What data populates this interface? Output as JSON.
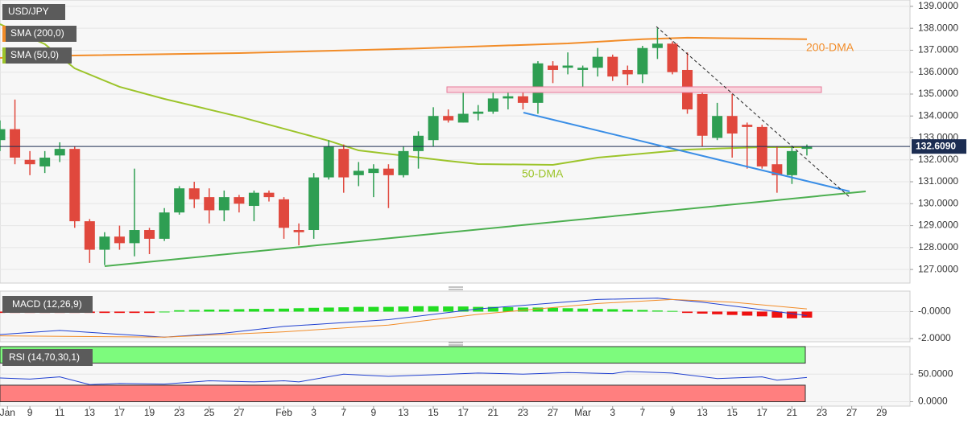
{
  "chart_data": [
    {
      "type": "candlestick",
      "title": "USD/JPY",
      "xlim": [
        -2,
        58.9
      ],
      "ylim": [
        126.38,
        139.29
      ],
      "yticks": [
        {
          "value": 127,
          "label": "127.0000"
        },
        {
          "value": 128,
          "label": "128.0000"
        },
        {
          "value": 129,
          "label": "129.0000"
        },
        {
          "value": 130,
          "label": "130.0000"
        },
        {
          "value": 131,
          "label": "131.0000"
        },
        {
          "value": 132,
          "label": "132.0000"
        },
        {
          "value": 133,
          "label": "133.0000"
        },
        {
          "value": 134,
          "label": "134.0000"
        },
        {
          "value": 135,
          "label": "135.0000"
        },
        {
          "value": 136,
          "label": "136.0000"
        },
        {
          "value": 137,
          "label": "137.0000"
        },
        {
          "value": 138,
          "label": "138.0000"
        },
        {
          "value": 139,
          "label": "139.0000"
        }
      ],
      "xticks": [
        {
          "value": -1.5,
          "label": "Jan"
        },
        {
          "value": 0,
          "label": "9"
        },
        {
          "value": 2,
          "label": "11"
        },
        {
          "value": 4,
          "label": "13"
        },
        {
          "value": 6,
          "label": "17"
        },
        {
          "value": 8,
          "label": "19"
        },
        {
          "value": 10,
          "label": "23"
        },
        {
          "value": 12,
          "label": "25"
        },
        {
          "value": 14,
          "label": "27"
        },
        {
          "value": 17,
          "label": "Feb"
        },
        {
          "value": 19,
          "label": "3"
        },
        {
          "value": 21,
          "label": "7"
        },
        {
          "value": 23,
          "label": "9"
        },
        {
          "value": 25,
          "label": "13"
        },
        {
          "value": 27,
          "label": "15"
        },
        {
          "value": 29,
          "label": "17"
        },
        {
          "value": 31,
          "label": "21"
        },
        {
          "value": 33,
          "label": "23"
        },
        {
          "value": 35,
          "label": "27"
        },
        {
          "value": 37,
          "label": "Mar"
        },
        {
          "value": 39,
          "label": "3"
        },
        {
          "value": 41,
          "label": "7"
        },
        {
          "value": 43,
          "label": "9"
        },
        {
          "value": 45,
          "label": "13"
        },
        {
          "value": 47,
          "label": "15"
        },
        {
          "value": 49,
          "label": "17"
        },
        {
          "value": 51,
          "label": "21"
        },
        {
          "value": 53,
          "label": "23"
        },
        {
          "value": 55,
          "label": "27"
        },
        {
          "value": 57,
          "label": "29"
        }
      ],
      "up_color": "#2e9e52",
      "down_color": "#e0483d",
      "x": [
        -2,
        -1,
        0,
        1,
        2,
        3,
        4,
        5,
        6,
        7,
        8,
        9,
        10,
        11,
        12,
        13,
        14,
        15,
        16,
        17,
        18,
        19,
        20,
        21,
        22,
        23,
        24,
        25,
        26,
        27,
        28,
        29,
        30,
        31,
        32,
        33,
        34,
        35,
        36,
        37,
        38,
        39,
        40,
        41,
        42,
        43,
        44,
        45,
        46,
        47,
        48,
        49,
        50,
        51,
        52
      ],
      "open": [
        132.9,
        133.4,
        132.0,
        131.7,
        132.2,
        132.5,
        129.2,
        127.9,
        128.5,
        128.2,
        128.8,
        128.4,
        129.6,
        130.7,
        130.3,
        129.7,
        130.3,
        129.9,
        130.5,
        130.2,
        128.8,
        128.8,
        131.2,
        132.5,
        131.3,
        131.4,
        131.6,
        131.3,
        132.4,
        132.9,
        134.0,
        133.7,
        134.1,
        134.2,
        134.8,
        134.9,
        134.6,
        136.3,
        136.2,
        136.1,
        136.2,
        136.7,
        136.1,
        135.9,
        137.1,
        137.3,
        136.1,
        135.0,
        133.0,
        134.0,
        133.6,
        133.5,
        131.8,
        131.3,
        132.5
      ],
      "high": [
        133.8,
        134.75,
        132.4,
        132.4,
        132.8,
        132.6,
        129.3,
        128.7,
        129.0,
        131.6,
        128.9,
        129.8,
        130.8,
        131.0,
        130.7,
        130.6,
        130.4,
        130.6,
        130.6,
        130.3,
        129.1,
        131.4,
        132.9,
        132.7,
        131.9,
        131.8,
        131.8,
        132.6,
        133.3,
        134.4,
        134.3,
        135.1,
        134.5,
        135.2,
        135.1,
        135.1,
        136.5,
        136.5,
        136.9,
        136.3,
        137.1,
        136.8,
        136.3,
        137.2,
        138.0,
        137.4,
        136.9,
        135.1,
        134.6,
        135.0,
        133.7,
        133.6,
        132.6,
        132.6,
        132.7
      ],
      "low": [
        132.4,
        131.8,
        131.3,
        131.4,
        131.9,
        128.9,
        127.3,
        127.2,
        127.9,
        127.6,
        127.7,
        128.3,
        129.5,
        129.8,
        129.1,
        129.2,
        129.6,
        129.2,
        130.1,
        128.4,
        128.1,
        128.4,
        131.1,
        130.5,
        130.8,
        130.3,
        129.8,
        131.2,
        131.6,
        132.6,
        133.7,
        133.7,
        133.8,
        134.1,
        134.3,
        134.3,
        134.1,
        135.5,
        135.9,
        135.3,
        135.8,
        135.6,
        135.4,
        135.5,
        136.6,
        135.9,
        134.1,
        132.6,
        132.9,
        132.1,
        131.6,
        131.6,
        130.5,
        130.9,
        132.2
      ],
      "close": [
        133.4,
        132.1,
        131.8,
        132.1,
        132.5,
        129.2,
        127.9,
        128.5,
        128.2,
        128.8,
        128.4,
        129.6,
        130.7,
        130.2,
        129.7,
        130.3,
        130.0,
        130.5,
        130.3,
        128.9,
        128.7,
        131.2,
        132.6,
        131.2,
        131.5,
        131.6,
        131.3,
        132.4,
        133.1,
        134.0,
        133.8,
        134.1,
        134.2,
        134.8,
        134.9,
        134.6,
        136.4,
        136.1,
        136.3,
        136.2,
        136.7,
        135.8,
        135.9,
        137.1,
        137.3,
        136.0,
        134.3,
        133.1,
        134.0,
        133.2,
        133.5,
        131.7,
        131.3,
        132.4,
        132.6
      ],
      "series": [
        {
          "name": "SMA (200,0)",
          "color": "#f28c28",
          "x": [
            -2,
            3,
            14,
            25,
            36,
            41,
            44,
            49,
            52
          ],
          "values": [
            136.65,
            136.76,
            136.87,
            137.06,
            137.31,
            137.5,
            137.57,
            137.53,
            137.5
          ]
        },
        {
          "name": "SMA (50,0)",
          "color": "#9cc42a",
          "x": [
            -2,
            1,
            3,
            6,
            9,
            14,
            20,
            22,
            28,
            30,
            35,
            38,
            44,
            49,
            52
          ],
          "values": [
            138.19,
            137.28,
            136.17,
            135.33,
            134.78,
            133.97,
            132.87,
            132.43,
            131.95,
            131.81,
            131.77,
            132.1,
            132.47,
            132.58,
            132.58
          ]
        }
      ],
      "last_price": {
        "value": 132.609,
        "label": "132.6090"
      },
      "annotations": [
        "200-DMA",
        "50-DMA"
      ]
    },
    {
      "type": "bar",
      "title": "MACD (12,26,9)",
      "xlim": [
        -2,
        58.9
      ],
      "ylim": [
        -2.24,
        1.52
      ],
      "yticks": [
        {
          "value": 0,
          "label": "-0.0000"
        },
        {
          "value": -2,
          "label": "-2.0000"
        }
      ],
      "up_color": "#22dd22",
      "down_color": "#ee1111",
      "x": [
        -2,
        -1,
        0,
        1,
        2,
        3,
        4,
        5,
        6,
        7,
        8,
        9,
        10,
        11,
        12,
        13,
        14,
        15,
        16,
        17,
        18,
        19,
        20,
        21,
        22,
        23,
        24,
        25,
        26,
        27,
        28,
        29,
        30,
        31,
        32,
        33,
        34,
        35,
        36,
        37,
        38,
        39,
        40,
        41,
        42,
        43,
        44,
        45,
        46,
        47,
        48,
        49,
        50,
        51,
        52
      ],
      "values": [
        -0.1,
        -0.1,
        -0.1,
        -0.1,
        -0.1,
        -0.1,
        -0.1,
        -0.1,
        -0.1,
        -0.1,
        -0.1,
        0,
        0.1,
        0.12,
        0.15,
        0.15,
        0.18,
        0.2,
        0.2,
        0.22,
        0.25,
        0.28,
        0.3,
        0.32,
        0.35,
        0.35,
        0.35,
        0.38,
        0.4,
        0.4,
        0.38,
        0.38,
        0.35,
        0.35,
        0.33,
        0.3,
        0.3,
        0.28,
        0.25,
        0.22,
        0.2,
        0.18,
        0.15,
        0.12,
        0.08,
        0.05,
        -0.1,
        -0.15,
        -0.2,
        -0.25,
        -0.3,
        -0.35,
        -0.45,
        -0.5,
        -0.45
      ],
      "series": [
        {
          "color": "#2040d0",
          "x": [
            -2,
            2,
            9,
            13,
            17,
            24,
            30,
            38,
            42,
            45,
            50,
            52
          ],
          "values": [
            -1.7,
            -1.4,
            -1.9,
            -1.6,
            -1.1,
            -0.6,
            0.2,
            0.9,
            1.0,
            0.7,
            0,
            -0.3
          ]
        },
        {
          "color": "#f28c28",
          "x": [
            -2,
            9,
            17,
            24,
            30,
            38,
            43,
            47,
            52
          ],
          "values": [
            -1.8,
            -1.9,
            -1.5,
            -1.0,
            -0.2,
            0.6,
            0.9,
            0.7,
            0.2
          ]
        }
      ]
    },
    {
      "type": "line",
      "title": "RSI (14,70,30,1)",
      "xlim": [
        -2,
        58.9
      ],
      "ylim": [
        -8,
        100
      ],
      "yticks": [
        {
          "value": 50,
          "label": "50.0000"
        },
        {
          "value": 0,
          "label": "0.0000"
        }
      ],
      "bands": [
        {
          "range": [
            70,
            100
          ],
          "color": "#7dfb7d"
        },
        {
          "range": [
            0,
            30
          ],
          "color": "#ff7f7f"
        }
      ],
      "series": [
        {
          "color": "#2040d0",
          "x": [
            -2,
            0,
            2,
            4,
            6,
            9,
            12,
            15,
            17,
            18,
            21,
            24,
            27,
            30,
            33,
            36,
            39,
            40,
            43,
            46,
            49,
            50,
            52
          ],
          "values": [
            43,
            41,
            45,
            31,
            33,
            32,
            38,
            36,
            38,
            36,
            50,
            46,
            49,
            52,
            50,
            53,
            51,
            55,
            52,
            42,
            45,
            39,
            44
          ]
        }
      ]
    }
  ]
}
